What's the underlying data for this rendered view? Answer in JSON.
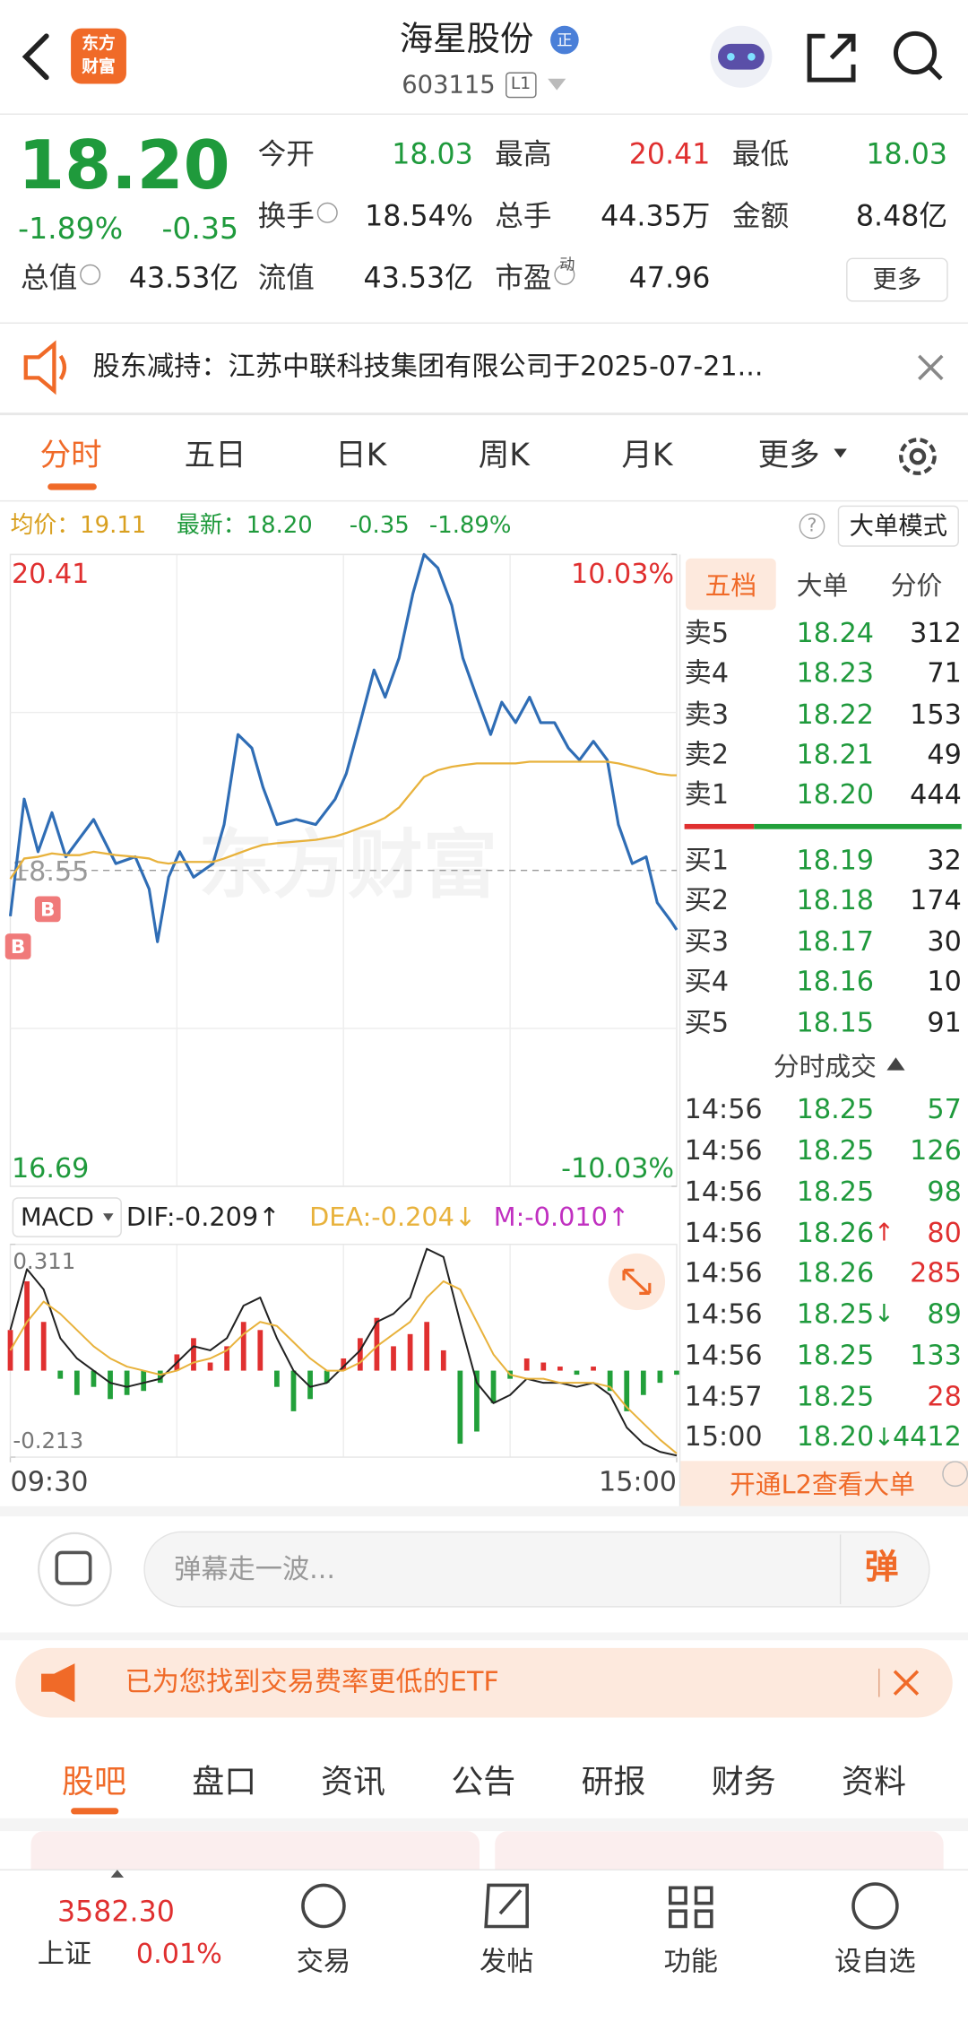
{
  "header": {
    "logo": [
      "东方",
      "财富"
    ],
    "title": "海星股份",
    "badge": "正",
    "code": "603115",
    "level": "L1"
  },
  "quote": {
    "price": "18.20",
    "change_pct": "-1.89%",
    "change": "-0.35",
    "color": "#1f9a3c",
    "stats": [
      {
        "label": "今开",
        "value": "18.03",
        "color": "#1f9a3c"
      },
      {
        "label": "最高",
        "value": "20.41",
        "color": "#e03030"
      },
      {
        "label": "最低",
        "value": "18.03",
        "color": "#1f9a3c"
      },
      {
        "label": "换手",
        "value": "18.54%",
        "color": "#222222"
      },
      {
        "label": "总手",
        "value": "44.35万",
        "color": "#222222"
      },
      {
        "label": "金额",
        "value": "8.48亿",
        "color": "#222222"
      },
      {
        "label": "总值",
        "value": "43.53亿",
        "color": "#222222"
      },
      {
        "label": "流值",
        "value": "43.53亿",
        "color": "#222222"
      },
      {
        "label": "市盈",
        "value": "47.96",
        "color": "#222222"
      }
    ],
    "pe_sup": "动",
    "more": "更多"
  },
  "notice": "股东减持：江苏中联科技集团有限公司于2025-07-21...",
  "tabs": [
    "分时",
    "五日",
    "日K",
    "周K",
    "月K",
    "更多"
  ],
  "info": {
    "avg": "均价：19.11",
    "latest": "最新：18.20",
    "change": "-0.35",
    "change_pct": "-1.89%",
    "help": "?",
    "big_order_mode": "大单模式"
  },
  "chart_data": [
    {
      "type": "line",
      "watermark": "东方财富",
      "annotations": [
        "B",
        "B"
      ],
      "x": [
        0,
        5,
        10,
        15,
        20,
        25,
        30,
        38,
        45,
        50,
        53,
        57,
        61,
        66,
        73,
        77,
        82,
        87,
        91,
        96,
        103,
        110,
        117,
        121,
        126,
        131,
        135,
        140,
        145,
        149,
        154,
        159,
        163,
        168,
        173,
        177,
        182,
        187,
        191,
        196,
        201,
        205,
        210,
        215,
        219,
        224,
        229,
        233,
        238,
        240
      ],
      "xlim": [
        0,
        240
      ],
      "xticks": [
        {
          "value": 0,
          "label": "09:30"
        },
        {
          "value": 240,
          "label": "15:00"
        }
      ],
      "ylim": [
        16.69,
        20.41
      ],
      "yticks": [
        16.69,
        18.55,
        20.41
      ],
      "y2lim": [
        -10.03,
        10.03
      ],
      "y2ticks": [
        {
          "value": -10.03,
          "label": "-10.03%"
        },
        {
          "value": 10.03,
          "label": "10.03%"
        }
      ],
      "grid": true,
      "series": [
        {
          "color": "#2f6db5",
          "values": [
            18.28,
            18.97,
            18.66,
            18.89,
            18.63,
            18.74,
            18.85,
            18.59,
            18.63,
            18.44,
            18.13,
            18.51,
            18.66,
            18.51,
            18.59,
            18.82,
            19.35,
            19.27,
            19.04,
            18.82,
            18.85,
            18.82,
            18.97,
            19.12,
            19.42,
            19.73,
            19.57,
            19.8,
            20.18,
            20.41,
            20.33,
            20.11,
            19.8,
            19.57,
            19.35,
            19.54,
            19.42,
            19.57,
            19.42,
            19.42,
            19.27,
            19.2,
            19.31,
            19.2,
            18.82,
            18.59,
            18.63,
            18.36,
            18.25,
            18.2
          ]
        },
        {
          "color": "#e8b23c",
          "values": [
            18.5,
            18.62,
            18.63,
            18.65,
            18.64,
            18.64,
            18.66,
            18.64,
            18.63,
            18.62,
            18.6,
            18.59,
            18.6,
            18.6,
            18.6,
            18.62,
            18.65,
            18.68,
            18.7,
            18.71,
            18.72,
            18.73,
            18.75,
            18.77,
            18.8,
            18.83,
            18.86,
            18.92,
            19.02,
            19.1,
            19.14,
            19.16,
            19.17,
            19.18,
            19.18,
            19.18,
            19.18,
            19.19,
            19.19,
            19.19,
            19.19,
            19.19,
            19.19,
            19.19,
            19.18,
            19.16,
            19.14,
            19.12,
            19.11,
            19.11
          ]
        }
      ]
    },
    {
      "type": "macd",
      "indicator": "MACD",
      "legend_labels": [
        "DIF:-0.209↑",
        "DEA:-0.204↓",
        "M:-0.010↑"
      ],
      "legend_colors": [
        "#222222",
        "#e8b23c",
        "#c030c0"
      ],
      "x": [
        0,
        6,
        12,
        18,
        24,
        30,
        36,
        42,
        48,
        54,
        60,
        66,
        72,
        78,
        84,
        90,
        96,
        102,
        108,
        114,
        120,
        126,
        132,
        138,
        144,
        150,
        156,
        162,
        168,
        174,
        180,
        186,
        192,
        198,
        204,
        210,
        216,
        222,
        228,
        234,
        240
      ],
      "xlim": [
        0,
        240
      ],
      "ylim": [
        -0.213,
        0.311
      ],
      "yticks": [
        -0.213,
        0.311
      ],
      "series": [
        {
          "type": "bar",
          "color": "#e03030",
          "negative_color": "#22a03a",
          "values": [
            0.1,
            0.22,
            0.12,
            -0.02,
            -0.06,
            -0.04,
            -0.07,
            -0.06,
            -0.05,
            -0.03,
            0.04,
            0.08,
            0.02,
            0.06,
            0.12,
            0.1,
            -0.04,
            -0.1,
            -0.07,
            -0.03,
            0.03,
            0.08,
            0.13,
            0.06,
            0.09,
            0.12,
            0.05,
            -0.18,
            -0.15,
            -0.08,
            -0.02,
            0.03,
            0.02,
            0.01,
            -0.01,
            0.01,
            -0.05,
            -0.1,
            -0.06,
            -0.03,
            -0.01
          ]
        },
        {
          "type": "line",
          "color": "#222222",
          "values": [
            0.1,
            0.25,
            0.2,
            0.08,
            0.03,
            0.0,
            -0.03,
            -0.04,
            -0.03,
            -0.02,
            0.02,
            0.06,
            0.05,
            0.08,
            0.16,
            0.18,
            0.08,
            0.0,
            -0.04,
            -0.03,
            0.01,
            0.05,
            0.12,
            0.14,
            0.18,
            0.3,
            0.28,
            0.12,
            -0.03,
            -0.08,
            -0.06,
            -0.02,
            -0.03,
            -0.03,
            -0.04,
            -0.03,
            -0.06,
            -0.14,
            -0.18,
            -0.2,
            -0.209
          ]
        },
        {
          "type": "line",
          "color": "#e8b23c",
          "values": [
            0.05,
            0.12,
            0.17,
            0.14,
            0.1,
            0.06,
            0.03,
            0.01,
            0.0,
            -0.01,
            0.0,
            0.02,
            0.03,
            0.05,
            0.09,
            0.12,
            0.11,
            0.07,
            0.03,
            0.0,
            0.0,
            0.02,
            0.06,
            0.09,
            0.12,
            0.18,
            0.22,
            0.2,
            0.12,
            0.04,
            -0.01,
            -0.02,
            -0.02,
            -0.03,
            -0.03,
            -0.03,
            -0.04,
            -0.09,
            -0.13,
            -0.17,
            -0.204
          ]
        }
      ]
    }
  ],
  "order_book": {
    "tabs": [
      "五档",
      "大单",
      "分价"
    ],
    "asks": [
      [
        "卖5",
        "18.24",
        "312"
      ],
      [
        "卖4",
        "18.23",
        "71"
      ],
      [
        "卖3",
        "18.22",
        "153"
      ],
      [
        "卖2",
        "18.21",
        "49"
      ],
      [
        "卖1",
        "18.20",
        "444"
      ]
    ],
    "bids": [
      [
        "买1",
        "18.19",
        "32"
      ],
      [
        "买2",
        "18.18",
        "174"
      ],
      [
        "买3",
        "18.17",
        "30"
      ],
      [
        "买4",
        "18.16",
        "10"
      ],
      [
        "买5",
        "18.15",
        "91"
      ]
    ],
    "price_color": "#1f9a3c",
    "trades_title": "分时成交",
    "trades": [
      {
        "time": "14:56",
        "price": "18.25",
        "volume": "57",
        "color": "#1f9a3c"
      },
      {
        "time": "14:56",
        "price": "18.25",
        "volume": "126",
        "color": "#1f9a3c"
      },
      {
        "time": "14:56",
        "price": "18.25",
        "volume": "98",
        "color": "#1f9a3c"
      },
      {
        "time": "14:56",
        "price": "18.26",
        "flag": "↑",
        "volume": "80",
        "color": "#e03030"
      },
      {
        "time": "14:56",
        "price": "18.26",
        "volume": "285",
        "color": "#e03030"
      },
      {
        "time": "14:56",
        "price": "18.25",
        "flag": "↓",
        "volume": "89",
        "color": "#1f9a3c"
      },
      {
        "time": "14:56",
        "price": "18.25",
        "volume": "133",
        "color": "#1f9a3c"
      },
      {
        "time": "14:57",
        "price": "18.25",
        "volume": "28",
        "color": "#e03030"
      },
      {
        "time": "15:00",
        "price": "18.20",
        "flag": "↓",
        "volume": "4412",
        "color": "#1f9a3c"
      }
    ],
    "l2_banner": "开通L2查看大单"
  },
  "comment": {
    "placeholder": "弹幕走一波...",
    "button": "弹"
  },
  "ad": "已为您找到交易费率更低的ETF",
  "section_tabs": [
    "股吧",
    "盘口",
    "资讯",
    "公告",
    "研报",
    "财务",
    "资料"
  ],
  "bottom_nav": {
    "index_value": "3582.30",
    "index_name": "上证",
    "index_change": "0.01%",
    "items": [
      "交易",
      "发帖",
      "功能",
      "设自选"
    ]
  }
}
